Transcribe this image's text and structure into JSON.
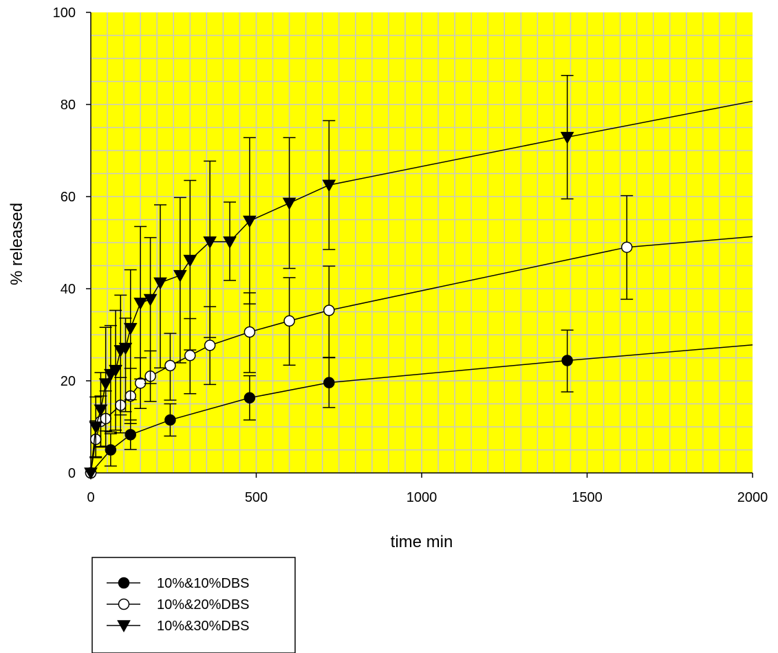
{
  "chart_data": {
    "type": "line",
    "xlabel": "time min",
    "ylabel": "% released",
    "xlim": [
      0,
      2000
    ],
    "ylim": [
      0,
      100
    ],
    "x_ticks": [
      0,
      500,
      1000,
      1500,
      2000
    ],
    "y_ticks": [
      0,
      20,
      40,
      60,
      80,
      100
    ],
    "x_minor_step": 50,
    "y_minor_step": 5,
    "grid": true,
    "plot_background": "#ffff00",
    "grid_color": "#c8c8c8",
    "legend_position": "below-left",
    "series": [
      {
        "name": "10%&10%DBS",
        "marker": "circle-filled",
        "x": [
          0,
          60,
          120,
          240,
          480,
          720,
          1440
        ],
        "y": [
          0,
          5,
          8.3,
          11.5,
          16.3,
          19.6,
          24.4
        ],
        "err_low": [
          0,
          3.5,
          3.2,
          3.5,
          4.8,
          5.4,
          6.8
        ],
        "err_high": [
          0,
          3.5,
          3.2,
          3.5,
          4.8,
          5.4,
          6.6
        ],
        "line_end": {
          "x": 2000,
          "y": 27.8
        }
      },
      {
        "name": "10%&20%DBS",
        "marker": "circle-open",
        "x": [
          0,
          15,
          30,
          45,
          90,
          120,
          150,
          180,
          240,
          300,
          360,
          480,
          600,
          720,
          1620
        ],
        "y": [
          0,
          7.3,
          11.2,
          11.8,
          14.7,
          16.7,
          19.5,
          21,
          23.3,
          25.5,
          27.7,
          30.6,
          33,
          35.3,
          49
        ],
        "err_low": [
          0,
          4,
          5.5,
          6,
          6,
          6,
          5.5,
          5.5,
          7.5,
          8.3,
          8.5,
          8.8,
          9.6,
          10.2,
          11.3
        ],
        "err_high": [
          0,
          4,
          5.5,
          6,
          6,
          6,
          5.5,
          5.5,
          7,
          8,
          8.4,
          8.5,
          9.4,
          9.6,
          11.2
        ],
        "line_end": {
          "x": 2000,
          "y": 51.3
        }
      },
      {
        "name": "10%&30%DBS",
        "marker": "triangle-down-filled",
        "x": [
          0,
          15,
          30,
          45,
          60,
          75,
          90,
          105,
          120,
          150,
          180,
          210,
          270,
          300,
          360,
          420,
          480,
          600,
          720,
          1440
        ],
        "y": [
          0,
          10,
          13.7,
          19.4,
          21.4,
          22.3,
          26.6,
          27.1,
          31.4,
          36.9,
          37.7,
          41.3,
          42.9,
          46.2,
          50.2,
          50.2,
          54.7,
          58.6,
          62.5,
          72.9
        ],
        "err_low": [
          0,
          6.5,
          8.1,
          10.3,
          12.5,
          13,
          14,
          13.8,
          15.5,
          16.5,
          18.3,
          18.5,
          19,
          19.5,
          20.8,
          8.4,
          18,
          14.2,
          14,
          13.4
        ],
        "err_high": [
          0,
          6.5,
          8.1,
          12.2,
          10.6,
          13,
          12,
          6.5,
          12.7,
          16.6,
          13.4,
          16.9,
          16.9,
          17.3,
          17.5,
          8.6,
          18.1,
          14.2,
          14,
          13.4
        ],
        "line_end": {
          "x": 2000,
          "y": 80.7
        }
      }
    ]
  }
}
